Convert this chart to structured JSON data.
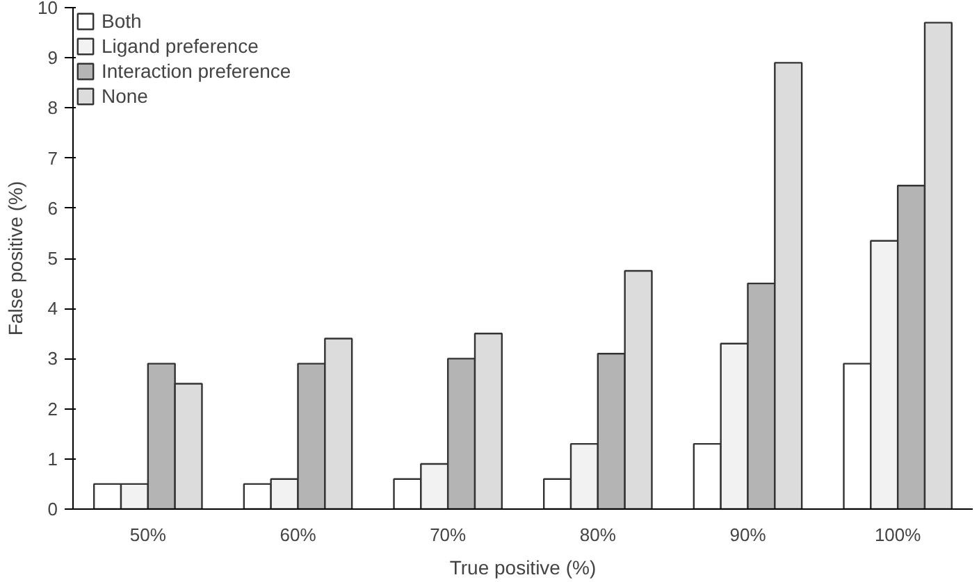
{
  "chart_data": {
    "type": "bar",
    "xlabel": "True positive (%)",
    "ylabel": "False positive (%)",
    "categories": [
      "50%",
      "60%",
      "70%",
      "80%",
      "90%",
      "100%"
    ],
    "series": [
      {
        "name": "Both",
        "color": "#ffffff",
        "values": [
          0.5,
          0.5,
          0.6,
          0.6,
          1.3,
          2.9
        ]
      },
      {
        "name": "Ligand preference",
        "color": "#f2f2f2",
        "values": [
          0.5,
          0.6,
          0.9,
          1.3,
          3.3,
          5.35
        ]
      },
      {
        "name": "Interaction preference",
        "color": "#b4b4b4",
        "values": [
          2.9,
          2.9,
          3.0,
          3.1,
          4.5,
          6.45
        ]
      },
      {
        "name": "None",
        "color": "#dcdcdc",
        "values": [
          2.5,
          3.4,
          3.5,
          4.75,
          8.9,
          9.7
        ]
      }
    ],
    "ylim": [
      0,
      10
    ],
    "yticks": [
      0,
      1,
      2,
      3,
      4,
      5,
      6,
      7,
      8,
      9,
      10
    ],
    "grid": false,
    "legend": "top left"
  }
}
